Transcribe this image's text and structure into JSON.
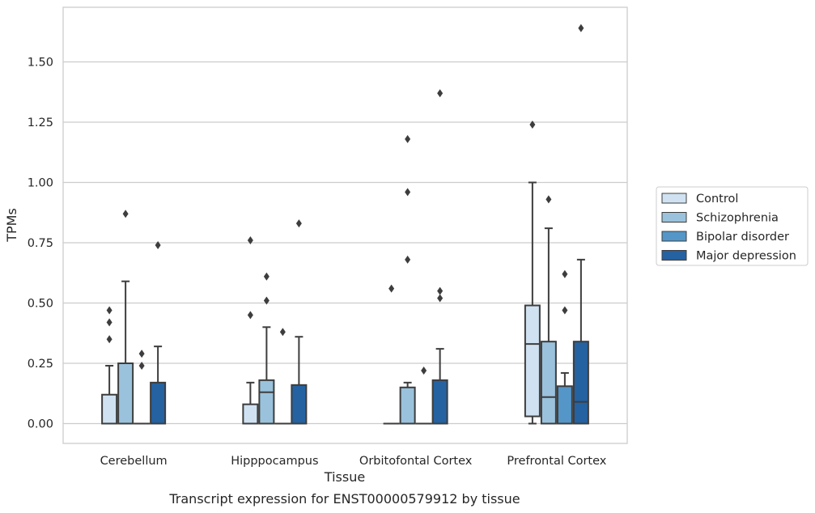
{
  "chart_data": {
    "type": "box",
    "caption": "Transcript expression for ENST00000579912 by tissue",
    "xlabel": "Tissue",
    "ylabel": "TPMs",
    "ylim": [
      -0.08,
      1.73
    ],
    "yticks": [
      "0.00",
      "0.25",
      "0.50",
      "0.75",
      "1.00",
      "1.25",
      "1.50"
    ],
    "ytick_values": [
      0,
      0.25,
      0.5,
      0.75,
      1.0,
      1.25,
      1.5
    ],
    "grid": "horizontal",
    "legend_position": "right",
    "categories": [
      "Cerebellum",
      "Hipppocampus",
      "Orbitofontal Cortex",
      "Prefrontal Cortex"
    ],
    "series": [
      {
        "name": "Control",
        "color": "#d0e2f2",
        "boxes": [
          {
            "low": 0,
            "q1": 0,
            "median": 0,
            "q3": 0.12,
            "high": 0.24,
            "outliers": [
              0.35,
              0.42,
              0.47
            ]
          },
          {
            "low": 0,
            "q1": 0,
            "median": 0,
            "q3": 0.08,
            "high": 0.17,
            "outliers": [
              0.45,
              0.76
            ]
          },
          {
            "low": 0,
            "q1": 0,
            "median": 0,
            "q3": 0,
            "high": 0,
            "outliers": [
              0.56
            ]
          },
          {
            "low": 0,
            "q1": 0.03,
            "median": 0.33,
            "q3": 0.49,
            "high": 1.0,
            "outliers": [
              1.24
            ]
          }
        ]
      },
      {
        "name": "Schizophrenia",
        "color": "#9ac2dc",
        "boxes": [
          {
            "low": 0,
            "q1": 0,
            "median": 0,
            "q3": 0.25,
            "high": 0.59,
            "outliers": [
              0.87
            ]
          },
          {
            "low": 0,
            "q1": 0,
            "median": 0.13,
            "q3": 0.18,
            "high": 0.4,
            "outliers": [
              0.51,
              0.61
            ]
          },
          {
            "low": 0,
            "q1": 0,
            "median": 0,
            "q3": 0.15,
            "high": 0.17,
            "outliers": [
              0.68,
              0.96,
              1.18
            ]
          },
          {
            "low": 0,
            "q1": 0,
            "median": 0.11,
            "q3": 0.34,
            "high": 0.81,
            "outliers": [
              0.93
            ]
          }
        ]
      },
      {
        "name": "Bipolar disorder",
        "color": "#5496c8",
        "boxes": [
          {
            "low": 0,
            "q1": 0,
            "median": 0,
            "q3": 0,
            "high": 0,
            "outliers": [
              0.24,
              0.29
            ]
          },
          {
            "low": 0,
            "q1": 0,
            "median": 0,
            "q3": 0,
            "high": 0,
            "outliers": [
              0.38
            ]
          },
          {
            "low": 0,
            "q1": 0,
            "median": 0,
            "q3": 0,
            "high": 0,
            "outliers": [
              0.22
            ]
          },
          {
            "low": 0,
            "q1": 0,
            "median": 0,
            "q3": 0.155,
            "high": 0.21,
            "outliers": [
              0.47,
              0.62
            ]
          }
        ]
      },
      {
        "name": "Major depression",
        "color": "#2462a2",
        "boxes": [
          {
            "low": 0,
            "q1": 0,
            "median": 0,
            "q3": 0.17,
            "high": 0.32,
            "outliers": [
              0.74
            ]
          },
          {
            "low": 0,
            "q1": 0,
            "median": 0,
            "q3": 0.16,
            "high": 0.36,
            "outliers": [
              0.83
            ]
          },
          {
            "low": 0,
            "q1": 0,
            "median": 0,
            "q3": 0.18,
            "high": 0.31,
            "outliers": [
              0.52,
              0.55,
              1.37
            ]
          },
          {
            "low": 0,
            "q1": 0,
            "median": 0.09,
            "q3": 0.34,
            "high": 0.68,
            "outliers": [
              1.64
            ]
          }
        ]
      }
    ]
  }
}
